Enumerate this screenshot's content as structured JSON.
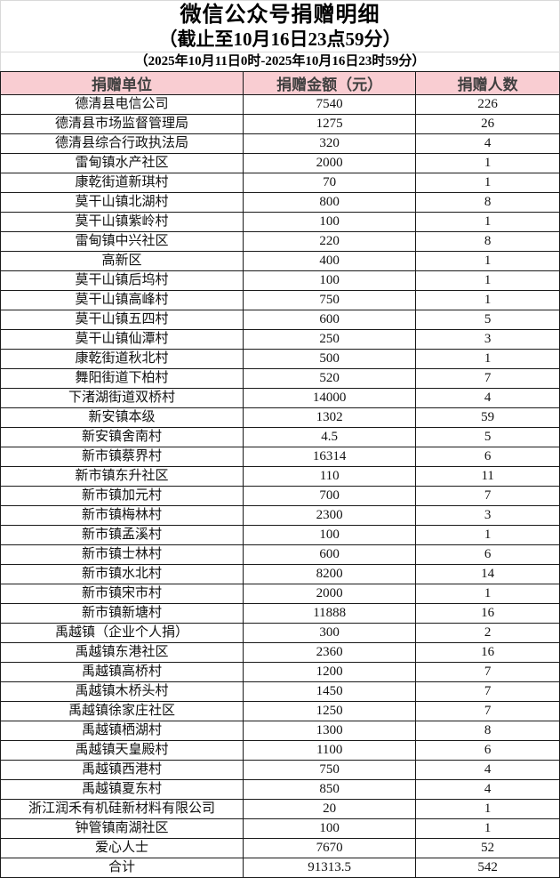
{
  "title": {
    "line1": "微信公众号捐赠明细",
    "line2": "（截止至10月16日23点59分）"
  },
  "subtitle": "（2025年10月11日0时-2025年10月16日23时59分）",
  "colors": {
    "header_bg": "#f9cdd2",
    "grid_border": "#1a1a1a",
    "outer_border": "#d9d9d9"
  },
  "table": {
    "header": {
      "unit": "捐赠单位",
      "amount": "捐赠金额（元）",
      "count": "捐赠人数"
    },
    "rows": [
      {
        "unit": "德清县电信公司",
        "amount": "7540",
        "count": "226"
      },
      {
        "unit": "德清县市场监督管理局",
        "amount": "1275",
        "count": "26"
      },
      {
        "unit": "德清县综合行政执法局",
        "amount": "320",
        "count": "4"
      },
      {
        "unit": "雷甸镇水产社区",
        "amount": "2000",
        "count": "1"
      },
      {
        "unit": "康乾街道新琪村",
        "amount": "70",
        "count": "1"
      },
      {
        "unit": "莫干山镇北湖村",
        "amount": "800",
        "count": "8"
      },
      {
        "unit": "莫干山镇紫岭村",
        "amount": "100",
        "count": "1"
      },
      {
        "unit": "雷甸镇中兴社区",
        "amount": "220",
        "count": "8"
      },
      {
        "unit": "高新区",
        "amount": "400",
        "count": "1"
      },
      {
        "unit": "莫干山镇后坞村",
        "amount": "100",
        "count": "1"
      },
      {
        "unit": "莫干山镇高峰村",
        "amount": "750",
        "count": "1"
      },
      {
        "unit": "莫干山镇五四村",
        "amount": "600",
        "count": "5"
      },
      {
        "unit": "莫干山镇仙潭村",
        "amount": "250",
        "count": "3"
      },
      {
        "unit": "康乾街道秋北村",
        "amount": "500",
        "count": "1"
      },
      {
        "unit": "舞阳街道下柏村",
        "amount": "520",
        "count": "7"
      },
      {
        "unit": "下渚湖街道双桥村",
        "amount": "14000",
        "count": "4"
      },
      {
        "unit": "新安镇本级",
        "amount": "1302",
        "count": "59"
      },
      {
        "unit": "新安镇舍南村",
        "amount": "4.5",
        "count": "5"
      },
      {
        "unit": "新市镇蔡界村",
        "amount": "16314",
        "count": "6"
      },
      {
        "unit": "新市镇东升社区",
        "amount": "110",
        "count": "11"
      },
      {
        "unit": "新市镇加元村",
        "amount": "700",
        "count": "7"
      },
      {
        "unit": "新市镇梅林村",
        "amount": "2300",
        "count": "3"
      },
      {
        "unit": "新市镇孟溪村",
        "amount": "100",
        "count": "1"
      },
      {
        "unit": "新市镇士林村",
        "amount": "600",
        "count": "6"
      },
      {
        "unit": "新市镇水北村",
        "amount": "8200",
        "count": "14"
      },
      {
        "unit": "新市镇宋市村",
        "amount": "2000",
        "count": "1"
      },
      {
        "unit": "新市镇新塘村",
        "amount": "11888",
        "count": "16"
      },
      {
        "unit": "禹越镇（企业个人捐）",
        "amount": "300",
        "count": "2"
      },
      {
        "unit": "禹越镇东港社区",
        "amount": "2360",
        "count": "16"
      },
      {
        "unit": "禹越镇高桥村",
        "amount": "1200",
        "count": "7"
      },
      {
        "unit": "禹越镇木桥头村",
        "amount": "1450",
        "count": "7"
      },
      {
        "unit": "禹越镇徐家庄社区",
        "amount": "1250",
        "count": "7"
      },
      {
        "unit": "禹越镇栖湖村",
        "amount": "1300",
        "count": "8"
      },
      {
        "unit": "禹越镇天皇殿村",
        "amount": "1100",
        "count": "6"
      },
      {
        "unit": "禹越镇西港村",
        "amount": "750",
        "count": "4"
      },
      {
        "unit": "禹越镇夏东村",
        "amount": "850",
        "count": "4"
      },
      {
        "unit": "浙江润禾有机硅新材料有限公司",
        "amount": "20",
        "count": "1"
      },
      {
        "unit": "钟管镇南湖社区",
        "amount": "100",
        "count": "1"
      },
      {
        "unit": "爱心人士",
        "amount": "7670",
        "count": "52"
      }
    ],
    "total": {
      "unit": "合计",
      "amount": "91313.5",
      "count": "542"
    }
  }
}
